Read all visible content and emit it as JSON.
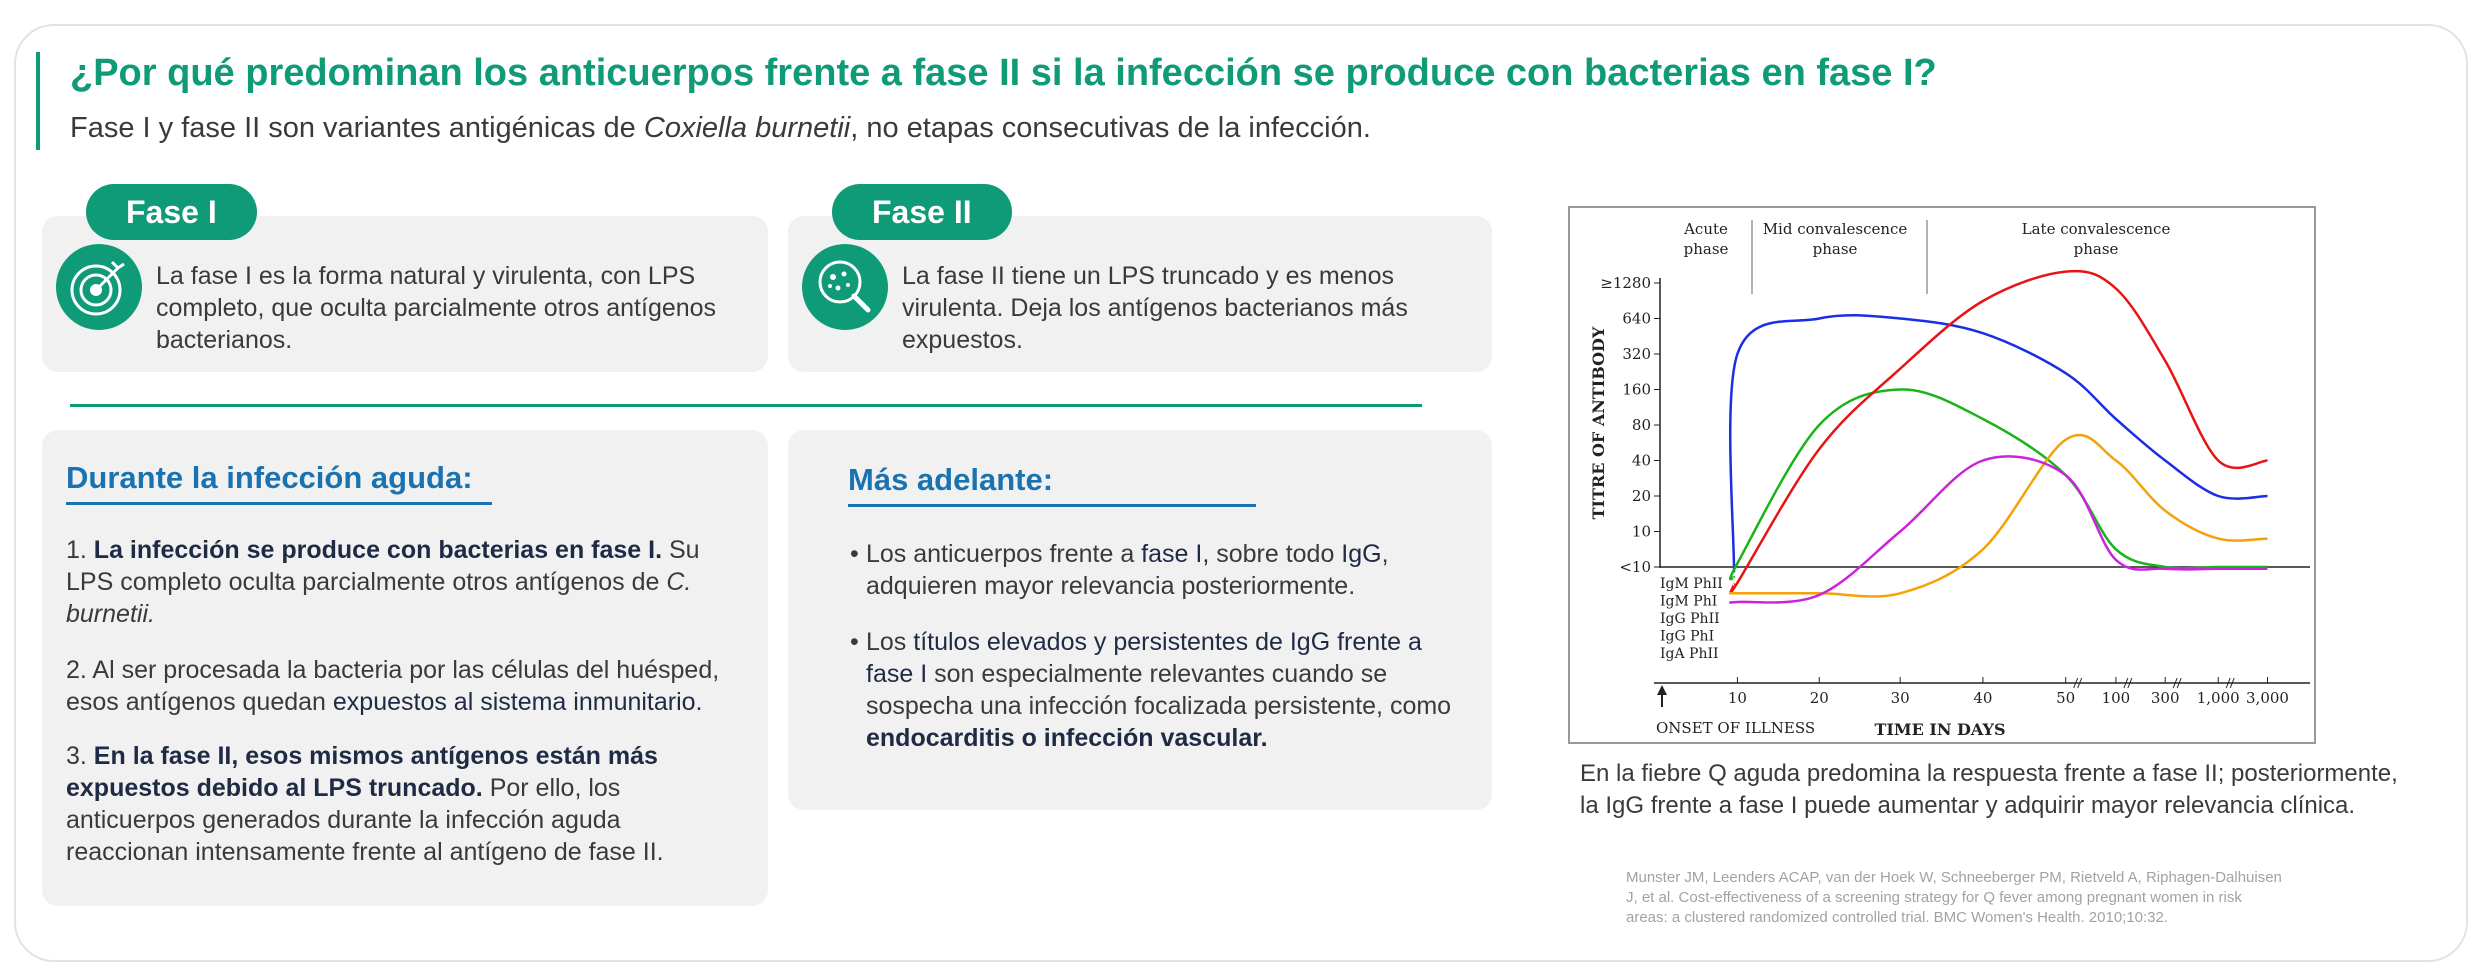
{
  "header": {
    "title": "¿Por qué predominan los anticuerpos frente a fase II si la infección se produce con bacterias en fase I?",
    "subtitle_pre": "Fase I y fase II son variantes antigénicas de ",
    "subtitle_italic": "Coxiella burnetii",
    "subtitle_post": ", no etapas consecutivas de la infección."
  },
  "phase1": {
    "label": "Fase I",
    "icon": "target-icon",
    "text": "La fase I es la forma natural y virulenta, con LPS completo, que oculta parcialmente otros antígenos bacterianos."
  },
  "phase2": {
    "label": "Fase II",
    "icon": "bacteria-magnifier-icon",
    "text": "La fase II tiene un LPS truncado y es menos virulenta. Deja los antígenos bacterianos más expuestos."
  },
  "acute": {
    "title": "Durante la infección aguda:",
    "p1_num": "1. ",
    "p1_bold": "La infección se produce con bacterias en fase I.",
    "p1_rest": " Su LPS completo oculta parcialmente otros antígenos de ",
    "p1_italic": "C. burnetii.",
    "p2_pre": "2. Al ser procesada la bacteria por las células del huésped, esos antígenos quedan ",
    "p2_bold": "expuestos al sistema inmunitario.",
    "p3_num": "3. ",
    "p3_bold": "En la fase II, esos mismos antígenos están más expuestos debido al LPS truncado.",
    "p3_rest": " Por ello, los anticuerpos generados durante la infección aguda reaccionan intensamente frente al antígeno de fase II."
  },
  "later": {
    "title": "Más adelante:",
    "b1_a": "Los anticuerpos frente a ",
    "b1_b": "fase I,",
    "b1_c": " sobre todo ",
    "b1_d": "IgG",
    "b1_e": ", adquieren mayor relevancia posteriormente.",
    "b2_a": "Los ",
    "b2_b": "títulos elevados y persistentes de IgG frente a fase I",
    "b2_c": " son especialmente relevantes cuando se sospecha una infección focalizada persistente, como ",
    "b2_d": "endocarditis o infección vascular."
  },
  "chart_data": {
    "type": "line",
    "phases": [
      "Acute phase",
      "Mid convalescence phase",
      "Late convalescence phase"
    ],
    "ylabel": "TITRE OF ANTIBODY",
    "xlabel": "TIME IN DAYS",
    "onset_label": "ONSET OF ILLNESS",
    "y_ticks": [
      "≥1280",
      "640",
      "320",
      "160",
      "80",
      "40",
      "20",
      "10",
      "<10"
    ],
    "x_ticks": [
      "10",
      "20",
      "30",
      "40",
      "50",
      "100",
      "300",
      "1,000",
      "3,000"
    ],
    "baseline_labels": [
      "IgM PhII",
      "IgM PhI",
      "IgG PhII",
      "IgG PhI",
      "IgA PhII"
    ],
    "x": [
      5,
      10,
      20,
      30,
      40,
      50,
      100,
      300,
      1000,
      3000
    ],
    "series": [
      {
        "name": "IgM PhII",
        "color": "#1a2ee6",
        "values": [
          -0.3,
          320,
          640,
          640,
          480,
          220,
          90,
          40,
          20,
          20
        ]
      },
      {
        "name": "IgM PhI",
        "color": "#18b418",
        "values": [
          -0.6,
          1,
          80,
          160,
          90,
          30,
          5,
          0,
          0,
          0
        ]
      },
      {
        "name": "IgG PhII",
        "color": "#e81414",
        "values": [
          -1,
          -0.9,
          50,
          240,
          900,
          1600,
          1150,
          280,
          40,
          40
        ]
      },
      {
        "name": "IgG PhI",
        "color": "#f5a20a",
        "values": [
          -1.5,
          -1.5,
          -1.5,
          -1.5,
          5,
          60,
          40,
          15,
          8,
          8
        ]
      },
      {
        "name": "IgA PhII",
        "color": "#cc22dd",
        "values": [
          -2,
          -2,
          -1.6,
          10,
          40,
          30,
          2,
          -0.1,
          -0.1,
          -0.1
        ]
      }
    ]
  },
  "caption": "En la fiebre Q aguda predomina la respuesta frente a fase II; posteriormente, la IgG frente a fase I puede aumentar y adquirir mayor relevancia clínica.",
  "reference": "Munster JM, Leenders ACAP, van der Hoek W, Schneeberger PM, Rietveld A, Riphagen-Dalhuisen J, et al. Cost-effectiveness of a screening strategy for Q fever among pregnant women in risk areas: a clustered randomized controlled trial. BMC Women's Health. 2010;10:32.",
  "colors": {
    "accent": "#0f9a78",
    "section_title": "#1a73b0",
    "card_bg": "#f1f1f1"
  }
}
